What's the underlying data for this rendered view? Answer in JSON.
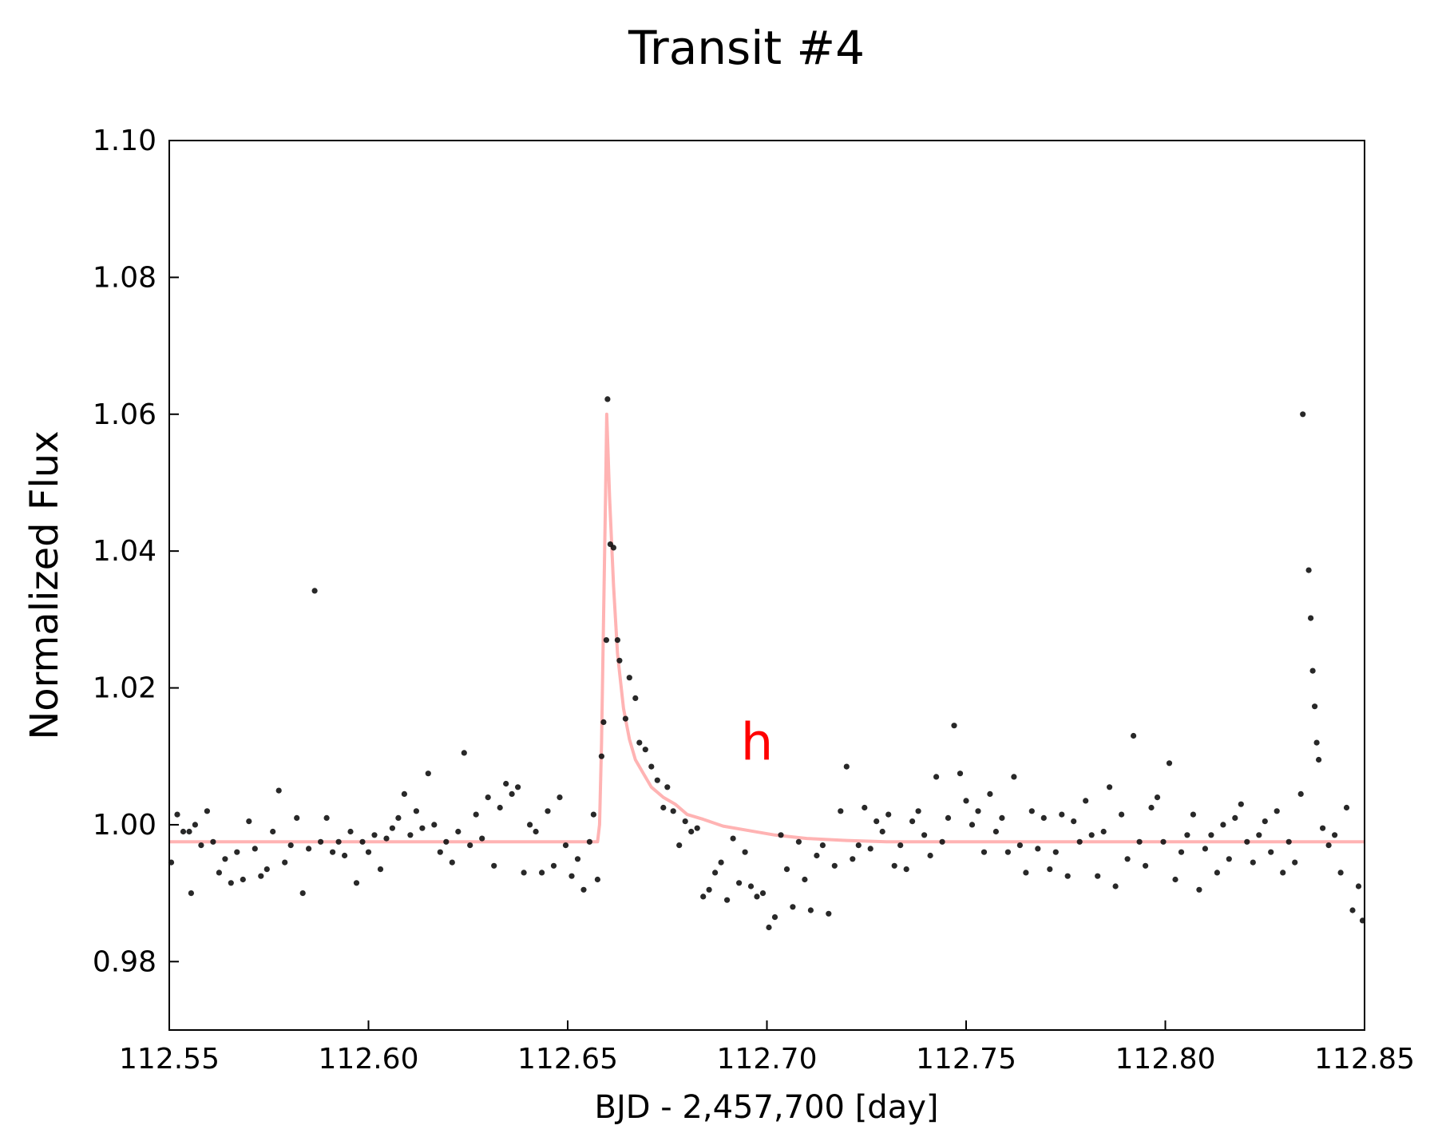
{
  "chart_data": {
    "type": "scatter",
    "title": "Transit #4",
    "xlabel": "BJD - 2,457,700 [day]",
    "ylabel": "Normalized Flux",
    "annotation": {
      "text": "h",
      "x": 112.6975,
      "y": 1.0095,
      "color": "#ff0000"
    },
    "xlim": [
      112.55,
      112.85
    ],
    "ylim": [
      0.97,
      1.1
    ],
    "xticks": [
      112.55,
      112.6,
      112.65,
      112.7,
      112.75,
      112.8,
      112.85
    ],
    "xtick_labels": [
      "112.55",
      "112.60",
      "112.65",
      "112.70",
      "112.75",
      "112.80",
      "112.85"
    ],
    "yticks": [
      0.98,
      1.0,
      1.02,
      1.04,
      1.06,
      1.08,
      1.1
    ],
    "ytick_labels": [
      "0.98",
      "1.00",
      "1.02",
      "1.04",
      "1.06",
      "1.08",
      "1.10"
    ],
    "grid": false,
    "colors": {
      "points": "#111111",
      "model": "#ffb3b3",
      "annotation": "#ff0000"
    },
    "model": {
      "baseline": 0.9975,
      "x": [
        112.55,
        112.6575,
        112.658,
        112.6585,
        112.659,
        112.6595,
        112.6598,
        112.6605,
        112.6615,
        112.6625,
        112.664,
        112.6655,
        112.667,
        112.669,
        112.671,
        112.674,
        112.677,
        112.68,
        112.684,
        112.689,
        112.695,
        112.702,
        112.71,
        112.72,
        112.73,
        112.85
      ],
      "y": [
        0.9975,
        0.9975,
        1.0,
        1.012,
        1.03,
        1.048,
        1.06,
        1.048,
        1.035,
        1.025,
        1.017,
        1.0125,
        1.0095,
        1.0075,
        1.0055,
        1.004,
        1.003,
        1.0015,
        1.0008,
        0.9998,
        0.9992,
        0.9985,
        0.998,
        0.9977,
        0.9975,
        0.9975
      ]
    },
    "points": [
      [
        112.5505,
        0.9945
      ],
      [
        112.552,
        1.0015
      ],
      [
        112.5535,
        0.999
      ],
      [
        112.555,
        0.999
      ],
      [
        112.5555,
        0.99
      ],
      [
        112.5565,
        1.0
      ],
      [
        112.558,
        0.997
      ],
      [
        112.5595,
        1.002
      ],
      [
        112.561,
        0.9975
      ],
      [
        112.5625,
        0.993
      ],
      [
        112.564,
        0.995
      ],
      [
        112.5655,
        0.9915
      ],
      [
        112.567,
        0.996
      ],
      [
        112.5685,
        0.992
      ],
      [
        112.57,
        1.0005
      ],
      [
        112.5715,
        0.9965
      ],
      [
        112.573,
        0.9925
      ],
      [
        112.5745,
        0.9935
      ],
      [
        112.576,
        0.999
      ],
      [
        112.5775,
        1.005
      ],
      [
        112.579,
        0.9945
      ],
      [
        112.5805,
        0.997
      ],
      [
        112.582,
        1.001
      ],
      [
        112.5835,
        0.99
      ],
      [
        112.585,
        0.9965
      ],
      [
        112.5865,
        1.0342
      ],
      [
        112.588,
        0.9975
      ],
      [
        112.5895,
        1.001
      ],
      [
        112.591,
        0.996
      ],
      [
        112.5925,
        0.9975
      ],
      [
        112.594,
        0.9955
      ],
      [
        112.5955,
        0.999
      ],
      [
        112.597,
        0.9915
      ],
      [
        112.5985,
        0.9975
      ],
      [
        112.6,
        0.996
      ],
      [
        112.6015,
        0.9985
      ],
      [
        112.603,
        0.9935
      ],
      [
        112.6045,
        0.998
      ],
      [
        112.606,
        0.9995
      ],
      [
        112.6075,
        1.001
      ],
      [
        112.609,
        1.0045
      ],
      [
        112.6105,
        0.9985
      ],
      [
        112.612,
        1.002
      ],
      [
        112.6135,
        0.9995
      ],
      [
        112.615,
        1.0075
      ],
      [
        112.6165,
        1.0
      ],
      [
        112.618,
        0.996
      ],
      [
        112.6195,
        0.9975
      ],
      [
        112.621,
        0.9945
      ],
      [
        112.6225,
        0.999
      ],
      [
        112.624,
        1.0105
      ],
      [
        112.6255,
        0.997
      ],
      [
        112.627,
        1.0015
      ],
      [
        112.6285,
        0.998
      ],
      [
        112.63,
        1.004
      ],
      [
        112.6315,
        0.994
      ],
      [
        112.633,
        1.0025
      ],
      [
        112.6345,
        1.006
      ],
      [
        112.636,
        1.0045
      ],
      [
        112.6375,
        1.0055
      ],
      [
        112.639,
        0.993
      ],
      [
        112.6405,
        1.0
      ],
      [
        112.642,
        0.999
      ],
      [
        112.6435,
        0.993
      ],
      [
        112.645,
        1.002
      ],
      [
        112.6465,
        0.994
      ],
      [
        112.648,
        1.004
      ],
      [
        112.6495,
        0.997
      ],
      [
        112.651,
        0.9925
      ],
      [
        112.6525,
        0.995
      ],
      [
        112.654,
        0.9905
      ],
      [
        112.6555,
        0.9975
      ],
      [
        112.6565,
        1.0015
      ],
      [
        112.6575,
        0.992
      ],
      [
        112.6585,
        1.01
      ],
      [
        112.659,
        1.015
      ],
      [
        112.6597,
        1.027
      ],
      [
        112.66,
        1.0622
      ],
      [
        112.6607,
        1.041
      ],
      [
        112.6615,
        1.0405
      ],
      [
        112.6625,
        1.027
      ],
      [
        112.663,
        1.024
      ],
      [
        112.6645,
        1.0155
      ],
      [
        112.6655,
        1.0215
      ],
      [
        112.667,
        1.0185
      ],
      [
        112.668,
        1.012
      ],
      [
        112.6695,
        1.011
      ],
      [
        112.671,
        1.0085
      ],
      [
        112.6725,
        1.0065
      ],
      [
        112.674,
        1.0025
      ],
      [
        112.675,
        1.0055
      ],
      [
        112.6765,
        1.002
      ],
      [
        112.678,
        0.997
      ],
      [
        112.6795,
        1.0005
      ],
      [
        112.681,
        0.999
      ],
      [
        112.6825,
        0.9995
      ],
      [
        112.684,
        0.9895
      ],
      [
        112.6855,
        0.9905
      ],
      [
        112.687,
        0.993
      ],
      [
        112.6885,
        0.9945
      ],
      [
        112.69,
        0.989
      ],
      [
        112.6915,
        0.998
      ],
      [
        112.693,
        0.9915
      ],
      [
        112.6945,
        0.996
      ],
      [
        112.696,
        0.991
      ],
      [
        112.6975,
        0.9895
      ],
      [
        112.699,
        0.99
      ],
      [
        112.7005,
        0.985
      ],
      [
        112.702,
        0.9865
      ],
      [
        112.7035,
        0.9985
      ],
      [
        112.705,
        0.9935
      ],
      [
        112.7065,
        0.988
      ],
      [
        112.708,
        0.9975
      ],
      [
        112.7095,
        0.992
      ],
      [
        112.711,
        0.9875
      ],
      [
        112.7125,
        0.9955
      ],
      [
        112.714,
        0.997
      ],
      [
        112.7155,
        0.987
      ],
      [
        112.717,
        0.994
      ],
      [
        112.7185,
        1.002
      ],
      [
        112.72,
        1.0085
      ],
      [
        112.7215,
        0.995
      ],
      [
        112.723,
        0.997
      ],
      [
        112.7245,
        1.0025
      ],
      [
        112.726,
        0.9965
      ],
      [
        112.7275,
        1.0005
      ],
      [
        112.729,
        0.999
      ],
      [
        112.7305,
        1.0015
      ],
      [
        112.732,
        0.994
      ],
      [
        112.7335,
        0.997
      ],
      [
        112.735,
        0.9935
      ],
      [
        112.7365,
        1.0005
      ],
      [
        112.738,
        1.002
      ],
      [
        112.7395,
        0.9985
      ],
      [
        112.741,
        0.9955
      ],
      [
        112.7425,
        1.007
      ],
      [
        112.744,
        0.9975
      ],
      [
        112.7455,
        1.001
      ],
      [
        112.747,
        1.0145
      ],
      [
        112.7485,
        1.0075
      ],
      [
        112.75,
        1.0035
      ],
      [
        112.7515,
        1.0
      ],
      [
        112.753,
        1.002
      ],
      [
        112.7545,
        0.996
      ],
      [
        112.756,
        1.0045
      ],
      [
        112.7575,
        0.999
      ],
      [
        112.759,
        1.001
      ],
      [
        112.7605,
        0.996
      ],
      [
        112.762,
        1.007
      ],
      [
        112.7635,
        0.997
      ],
      [
        112.765,
        0.993
      ],
      [
        112.7665,
        1.002
      ],
      [
        112.768,
        0.9965
      ],
      [
        112.7695,
        1.001
      ],
      [
        112.771,
        0.9935
      ],
      [
        112.7725,
        0.996
      ],
      [
        112.774,
        1.0015
      ],
      [
        112.7755,
        0.9925
      ],
      [
        112.777,
        1.0005
      ],
      [
        112.7785,
        0.9975
      ],
      [
        112.78,
        1.0035
      ],
      [
        112.7815,
        0.9985
      ],
      [
        112.783,
        0.9925
      ],
      [
        112.7845,
        0.999
      ],
      [
        112.786,
        1.0055
      ],
      [
        112.7875,
        0.991
      ],
      [
        112.789,
        1.0015
      ],
      [
        112.7905,
        0.995
      ],
      [
        112.792,
        1.013
      ],
      [
        112.7935,
        0.9975
      ],
      [
        112.795,
        0.994
      ],
      [
        112.7965,
        1.0025
      ],
      [
        112.798,
        1.004
      ],
      [
        112.7995,
        0.9975
      ],
      [
        112.801,
        1.009
      ],
      [
        112.8025,
        0.992
      ],
      [
        112.804,
        0.996
      ],
      [
        112.8055,
        0.9985
      ],
      [
        112.807,
        1.0015
      ],
      [
        112.8085,
        0.9905
      ],
      [
        112.81,
        0.9965
      ],
      [
        112.8115,
        0.9985
      ],
      [
        112.813,
        0.993
      ],
      [
        112.8145,
        1.0
      ],
      [
        112.816,
        0.995
      ],
      [
        112.8175,
        1.001
      ],
      [
        112.819,
        1.003
      ],
      [
        112.8205,
        0.9975
      ],
      [
        112.822,
        0.9945
      ],
      [
        112.8235,
        0.9985
      ],
      [
        112.825,
        1.0005
      ],
      [
        112.8265,
        0.996
      ],
      [
        112.828,
        1.002
      ],
      [
        112.8295,
        0.993
      ],
      [
        112.831,
        0.9975
      ],
      [
        112.8325,
        0.9945
      ],
      [
        112.834,
        1.0045
      ],
      [
        112.8345,
        1.06
      ],
      [
        112.836,
        1.0372
      ],
      [
        112.8365,
        1.0302
      ],
      [
        112.837,
        1.0225
      ],
      [
        112.8375,
        1.0173
      ],
      [
        112.838,
        1.012
      ],
      [
        112.8385,
        1.0095
      ],
      [
        112.8395,
        0.9995
      ],
      [
        112.841,
        0.997
      ],
      [
        112.8425,
        0.9985
      ],
      [
        112.844,
        0.993
      ],
      [
        112.8455,
        1.0025
      ],
      [
        112.847,
        0.9875
      ],
      [
        112.8485,
        0.991
      ],
      [
        112.8495,
        0.986
      ]
    ]
  }
}
